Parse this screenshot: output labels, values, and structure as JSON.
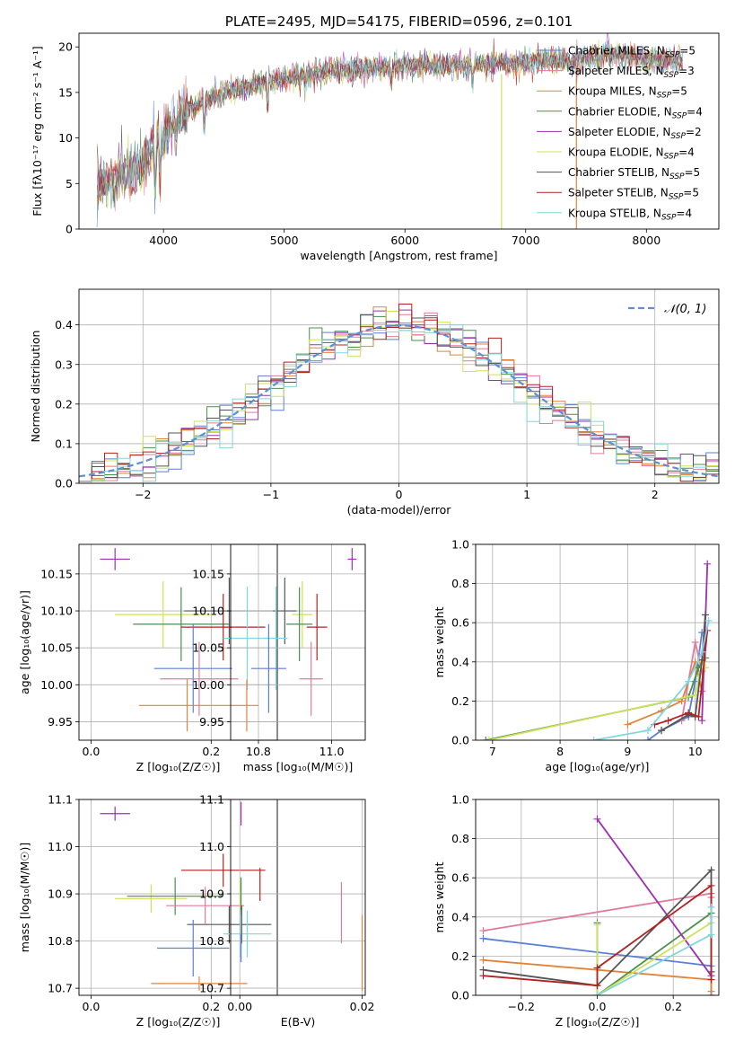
{
  "chart_data": [
    {
      "id": "spectrum",
      "type": "line",
      "title": "PLATE=2495, MJD=54175, FIBERID=0596, z=0.101",
      "xlabel": "wavelength [Angstrom, rest frame]",
      "ylabel": "Flux [fλ10⁻¹⁷ erg cm⁻² s⁻¹ A⁻¹]",
      "xlim": [
        3300,
        8600
      ],
      "ylim": [
        0,
        21.5
      ],
      "xticks": [
        4000,
        5000,
        6000,
        7000,
        8000
      ],
      "yticks": [
        0,
        5,
        10,
        15,
        20
      ],
      "grid": false,
      "legend_position": "top-right",
      "series": [
        {
          "name": "Chabrier MILES, N_SSP=5",
          "color": "#5b7fd6"
        },
        {
          "name": "Salpeter MILES, N_SSP=3",
          "color": "#e07b9c"
        },
        {
          "name": "Kroupa MILES, N_SSP=5",
          "color": "#e2833a"
        },
        {
          "name": "Chabrier ELODIE, N_SSP=4",
          "color": "#4a8f4c"
        },
        {
          "name": "Salpeter ELODIE, N_SSP=2",
          "color": "#9b30b0"
        },
        {
          "name": "Kroupa ELODIE, N_SSP=4",
          "color": "#cfe05a"
        },
        {
          "name": "Chabrier STELIB, N_SSP=5",
          "color": "#555555"
        },
        {
          "name": "Salpeter STELIB, N_SSP=5",
          "color": "#b22222"
        },
        {
          "name": "Kroupa STELIB, N_SSP=4",
          "color": "#7fd6de"
        }
      ],
      "continuum": {
        "x": [
          3450,
          3600,
          3800,
          4000,
          4200,
          4400,
          4600,
          4800,
          5000,
          5200,
          5400,
          5600,
          5800,
          6000,
          6200,
          6400,
          6600,
          6800,
          7000,
          7200,
          7400,
          7600,
          7800,
          8000,
          8200,
          8300
        ],
        "y": [
          4.5,
          5.5,
          6.5,
          10.5,
          13.0,
          14.5,
          15.5,
          16.0,
          16.5,
          17.0,
          17.5,
          17.5,
          17.8,
          18.0,
          18.0,
          18.0,
          18.0,
          18.2,
          18.2,
          18.5,
          18.5,
          19.0,
          19.3,
          18.5,
          18.5,
          18.5
        ]
      },
      "artifacts": [
        {
          "x": 6800,
          "series": "Kroupa ELODIE, N_SSP=4"
        },
        {
          "x": 7420,
          "series": "Kroupa MILES, N_SSP=5"
        }
      ]
    },
    {
      "id": "residuals",
      "type": "step",
      "xlabel": "(data-model)/error",
      "ylabel": "Normed distribution",
      "xlim": [
        -2.5,
        2.5
      ],
      "ylim": [
        0,
        0.49
      ],
      "xticks": [
        -2,
        -1,
        0,
        1,
        2
      ],
      "yticks": [
        0.0,
        0.1,
        0.2,
        0.3,
        0.4
      ],
      "grid": true,
      "legend": [
        {
          "label": "𝒩(0, 1)",
          "color": "#5b8fd6",
          "style": "dashed"
        }
      ],
      "legend_position": "top-right",
      "bin_edges": [
        -2.5,
        -2.4,
        -2.3,
        -2.2,
        -2.1,
        -2.0,
        -1.9,
        -1.8,
        -1.7,
        -1.6,
        -1.5,
        -1.4,
        -1.3,
        -1.2,
        -1.1,
        -1.0,
        -0.9,
        -0.8,
        -0.7,
        -0.6,
        -0.5,
        -0.4,
        -0.3,
        -0.2,
        -0.1,
        0.0,
        0.1,
        0.2,
        0.3,
        0.4,
        0.5,
        0.6,
        0.7,
        0.8,
        0.9,
        1.0,
        1.1,
        1.2,
        1.3,
        1.4,
        1.5,
        1.6,
        1.7,
        1.8,
        1.9,
        2.0,
        2.1,
        2.2,
        2.3,
        2.4,
        2.5
      ]
    },
    {
      "id": "age-vs-Z",
      "type": "errorbar",
      "xlabel": "Z [log₁₀(Z/Z☉)]",
      "ylabel": "age  [log₁₀(age/yr)]",
      "xlim": [
        -0.02,
        0.31
      ],
      "ylim": [
        9.925,
        10.19
      ],
      "xticks": [
        0.0,
        0.2
      ],
      "yticks": [
        9.95,
        10.0,
        10.05,
        10.1,
        10.15
      ],
      "grid": true,
      "points": [
        {
          "series": "Salpeter ELODIE, N_SSP=2",
          "x": 0.04,
          "y": 10.17,
          "xerr": 0.025,
          "yerr": 0.015
        },
        {
          "series": "Kroupa ELODIE, N_SSP=4",
          "x": 0.12,
          "y": 10.095,
          "xerr": 0.08,
          "yerr": 0.045
        },
        {
          "series": "Chabrier ELODIE, N_SSP=4",
          "x": 0.15,
          "y": 10.082,
          "xerr": 0.08,
          "yerr": 0.05
        },
        {
          "series": "Chabrier STELIB, N_SSP=5",
          "x": 0.23,
          "y": 10.1,
          "xerr": 0.075,
          "yerr": 0.045
        },
        {
          "series": "Salpeter STELIB, N_SSP=5",
          "x": 0.22,
          "y": 10.078,
          "xerr": 0.07,
          "yerr": 0.045
        },
        {
          "series": "Kroupa STELIB, N_SSP=4",
          "x": 0.26,
          "y": 10.063,
          "xerr": 0.04,
          "yerr": 0.07
        },
        {
          "series": "Chabrier MILES, N_SSP=5",
          "x": 0.17,
          "y": 10.022,
          "xerr": 0.065,
          "yerr": 0.06
        },
        {
          "series": "Salpeter MILES, N_SSP=3",
          "x": 0.18,
          "y": 10.008,
          "xerr": 0.065,
          "yerr": 0.05
        },
        {
          "series": "Kroupa MILES, N_SSP=5",
          "x": 0.16,
          "y": 9.972,
          "xerr": 0.08,
          "yerr": 0.035
        }
      ]
    },
    {
      "id": "age-vs-mass",
      "type": "errorbar",
      "xlabel": "mass [log₁₀(M/M☉)]",
      "ylabel": "",
      "xlim": [
        10.655,
        11.115
      ],
      "ylim": [
        9.925,
        10.19
      ],
      "xticks": [
        10.75,
        11.0
      ],
      "yticks": [
        9.95,
        10.0,
        10.05,
        10.1,
        10.15
      ],
      "grid": true,
      "points": [
        {
          "series": "Salpeter ELODIE, N_SSP=2",
          "x": 11.07,
          "y": 10.17,
          "xerr": 0.015,
          "yerr": 0.015
        },
        {
          "series": "Kroupa ELODIE, N_SSP=4",
          "x": 10.9,
          "y": 10.095,
          "xerr": 0.035,
          "yerr": 0.045
        },
        {
          "series": "Chabrier ELODIE, N_SSP=4",
          "x": 10.89,
          "y": 10.082,
          "xerr": 0.045,
          "yerr": 0.05
        },
        {
          "series": "Chabrier STELIB, N_SSP=5",
          "x": 10.84,
          "y": 10.1,
          "xerr": 0.04,
          "yerr": 0.045
        },
        {
          "series": "Salpeter STELIB, N_SSP=5",
          "x": 10.95,
          "y": 10.078,
          "xerr": 0.035,
          "yerr": 0.045
        },
        {
          "series": "Kroupa STELIB, N_SSP=4",
          "x": 10.81,
          "y": 10.063,
          "xerr": 0.04,
          "yerr": 0.07
        },
        {
          "series": "Chabrier MILES, N_SSP=5",
          "x": 10.785,
          "y": 10.022,
          "xerr": 0.06,
          "yerr": 0.06
        },
        {
          "series": "Salpeter MILES, N_SSP=3",
          "x": 10.93,
          "y": 10.008,
          "xerr": 0.04,
          "yerr": 0.05
        },
        {
          "series": "Kroupa MILES, N_SSP=5",
          "x": 10.71,
          "y": 9.972,
          "xerr": 0.04,
          "yerr": 0.035
        }
      ]
    },
    {
      "id": "weight-vs-age",
      "type": "line",
      "xlabel": "age  [log₁₀(age/yr)]",
      "ylabel": "mass weight",
      "xlim": [
        6.75,
        10.35
      ],
      "ylim": [
        0,
        1.0
      ],
      "xticks": [
        7,
        8,
        9,
        10
      ],
      "yticks": [
        0.0,
        0.2,
        0.4,
        0.6,
        0.8,
        1.0
      ],
      "grid": true,
      "series": [
        {
          "name": "Chabrier MILES, N_SSP=5",
          "x": [
            9.3,
            9.5,
            9.9,
            10.0,
            10.1
          ],
          "y": [
            0.0,
            0.05,
            0.12,
            0.3,
            0.55
          ]
        },
        {
          "name": "Salpeter MILES, N_SSP=3",
          "x": [
            9.8,
            10.0,
            10.1
          ],
          "y": [
            0.1,
            0.5,
            0.35
          ]
        },
        {
          "name": "Kroupa MILES, N_SSP=5",
          "x": [
            9.0,
            9.5,
            9.8,
            10.0,
            10.1
          ],
          "y": [
            0.08,
            0.15,
            0.2,
            0.4,
            0.25
          ]
        },
        {
          "name": "Chabrier ELODIE, N_SSP=4",
          "x": [
            6.9,
            9.9,
            10.05,
            10.15
          ],
          "y": [
            0.0,
            0.22,
            0.37,
            0.42
          ]
        },
        {
          "name": "Salpeter ELODIE, N_SSP=2",
          "x": [
            10.1,
            10.18
          ],
          "y": [
            0.1,
            0.9
          ]
        },
        {
          "name": "Kroupa ELODIE, N_SSP=4",
          "x": [
            6.95,
            10.0,
            10.1,
            10.15
          ],
          "y": [
            0.0,
            0.23,
            0.4,
            0.37
          ]
        },
        {
          "name": "Chabrier STELIB, N_SSP=5",
          "x": [
            9.5,
            9.9,
            10.0,
            10.1,
            10.15
          ],
          "y": [
            0.05,
            0.13,
            0.12,
            0.41,
            0.64
          ]
        },
        {
          "name": "Salpeter STELIB, N_SSP=5",
          "x": [
            9.4,
            9.6,
            9.9,
            10.05,
            10.18
          ],
          "y": [
            0.08,
            0.1,
            0.14,
            0.12,
            0.56
          ]
        },
        {
          "name": "Kroupa STELIB, N_SSP=4",
          "x": [
            8.5,
            9.3,
            9.9,
            10.1,
            10.2
          ],
          "y": [
            0.0,
            0.05,
            0.3,
            0.45,
            0.61
          ]
        }
      ]
    },
    {
      "id": "mass-vs-Z",
      "type": "errorbar",
      "xlabel": "Z [log₁₀(Z/Z☉)]",
      "ylabel": "mass [log₁₀(M/M☉)]",
      "xlim": [
        -0.02,
        0.31
      ],
      "ylim": [
        10.685,
        11.1
      ],
      "xticks": [
        0.0,
        0.2
      ],
      "yticks": [
        10.7,
        10.8,
        10.9,
        11.0,
        11.1
      ],
      "grid": true,
      "points": [
        {
          "series": "Salpeter ELODIE, N_SSP=2",
          "x": 0.04,
          "y": 11.07,
          "xerr": 0.025,
          "yerr": 0.015
        },
        {
          "series": "Kroupa ELODIE, N_SSP=4",
          "x": 0.1,
          "y": 10.89,
          "xerr": 0.06,
          "yerr": 0.03
        },
        {
          "series": "Chabrier ELODIE, N_SSP=4",
          "x": 0.14,
          "y": 10.895,
          "xerr": 0.08,
          "yerr": 0.04
        },
        {
          "series": "Salpeter STELIB, N_SSP=5",
          "x": 0.22,
          "y": 10.95,
          "xerr": 0.07,
          "yerr": 0.035
        },
        {
          "series": "Chabrier STELIB, N_SSP=5",
          "x": 0.23,
          "y": 10.835,
          "xerr": 0.07,
          "yerr": 0.04
        },
        {
          "series": "Kroupa STELIB, N_SSP=4",
          "x": 0.26,
          "y": 10.815,
          "xerr": 0.04,
          "yerr": 0.05
        },
        {
          "series": "Chabrier MILES, N_SSP=5",
          "x": 0.17,
          "y": 10.785,
          "xerr": 0.06,
          "yerr": 0.06
        },
        {
          "series": "Salpeter MILES, N_SSP=3",
          "x": 0.19,
          "y": 10.875,
          "xerr": 0.065,
          "yerr": 0.04
        },
        {
          "series": "Kroupa MILES, N_SSP=5",
          "x": 0.18,
          "y": 10.71,
          "xerr": 0.08,
          "yerr": 0.015
        }
      ]
    },
    {
      "id": "mass-vs-ebv",
      "type": "errorbar",
      "xlabel": "E(B-V)",
      "ylabel": "",
      "xlim": [
        -0.0015,
        0.0205
      ],
      "ylim": [
        10.685,
        11.1
      ],
      "xticks": [
        0.0,
        0.02
      ],
      "yticks": [
        10.7,
        10.8,
        10.9,
        11.0,
        11.1
      ],
      "grid": true,
      "points": [
        {
          "series": "Salpeter ELODIE, N_SSP=2",
          "x": 0.0002,
          "y": 11.07,
          "xerr": 0.0,
          "yerr": 0.025
        },
        {
          "series": "Kroupa ELODIE, N_SSP=4",
          "x": 0.0001,
          "y": 10.89,
          "xerr": 0.0,
          "yerr": 0.04
        },
        {
          "series": "Chabrier ELODIE, N_SSP=4",
          "x": 0.0002,
          "y": 10.895,
          "xerr": 0.0,
          "yerr": 0.04
        },
        {
          "series": "Chabrier STELIB, N_SSP=5",
          "x": 0.0003,
          "y": 10.835,
          "xerr": 0.0,
          "yerr": 0.04
        },
        {
          "series": "Kroupa STELIB, N_SSP=4",
          "x": 0.0001,
          "y": 10.815,
          "xerr": 0.0,
          "yerr": 0.05
        },
        {
          "series": "Chabrier MILES, N_SSP=5",
          "x": 0.0002,
          "y": 10.785,
          "xerr": 0.0,
          "yerr": 0.03
        },
        {
          "series": "Salpeter STELIB, N_SSP=5",
          "x": 0.0033,
          "y": 10.92,
          "xerr": 0.0,
          "yerr": 0.035
        },
        {
          "series": "Salpeter MILES, N_SSP=3",
          "x": 0.0166,
          "y": 10.86,
          "xerr": 0.0,
          "yerr": 0.065
        },
        {
          "series": "Kroupa MILES, N_SSP=5",
          "x": 0.02,
          "y": 10.775,
          "xerr": 0.0,
          "yerr": 0.08
        }
      ]
    },
    {
      "id": "weight-vs-Z",
      "type": "line",
      "xlabel": "Z [log₁₀(Z/Z☉)]",
      "ylabel": "mass weight",
      "xlim": [
        -0.32,
        0.32
      ],
      "ylim": [
        0,
        1.0
      ],
      "xticks": [
        -0.2,
        0.0,
        0.2
      ],
      "yticks": [
        0.0,
        0.2,
        0.4,
        0.6,
        0.8,
        1.0
      ],
      "grid": true,
      "series": [
        {
          "name": "Chabrier MILES, N_SSP=5",
          "x": [
            -0.3,
            0.3,
            0.3
          ],
          "y": [
            0.29,
            0.15,
            0.0
          ]
        },
        {
          "name": "Salpeter MILES, N_SSP=3",
          "x": [
            -0.3,
            0.3,
            0.3
          ],
          "y": [
            0.33,
            0.52,
            0.5
          ]
        },
        {
          "name": "Kroupa MILES, N_SSP=5",
          "x": [
            -0.3,
            0.3,
            0.3
          ],
          "y": [
            0.18,
            0.08,
            0.02
          ]
        },
        {
          "name": "Chabrier ELODIE, N_SSP=4",
          "x": [
            0.0,
            0.0,
            0.3
          ],
          "y": [
            0.37,
            0.0,
            0.42
          ]
        },
        {
          "name": "Salpeter ELODIE, N_SSP=2",
          "x": [
            0.0,
            0.3
          ],
          "y": [
            0.9,
            0.1
          ]
        },
        {
          "name": "Kroupa ELODIE, N_SSP=4",
          "x": [
            0.0,
            0.0,
            0.3
          ],
          "y": [
            0.36,
            0.0,
            0.37
          ]
        },
        {
          "name": "Chabrier STELIB, N_SSP=5",
          "x": [
            -0.3,
            0.0,
            0.3,
            0.3
          ],
          "y": [
            0.13,
            0.05,
            0.64,
            0.12
          ]
        },
        {
          "name": "Salpeter STELIB, N_SSP=5",
          "x": [
            -0.3,
            0.0,
            0.0,
            0.3,
            0.3
          ],
          "y": [
            0.1,
            0.05,
            0.14,
            0.56,
            0.08
          ]
        },
        {
          "name": "Kroupa STELIB, N_SSP=4",
          "x": [
            0.0,
            0.3,
            0.3
          ],
          "y": [
            0.0,
            0.31,
            0.45
          ]
        }
      ]
    }
  ]
}
